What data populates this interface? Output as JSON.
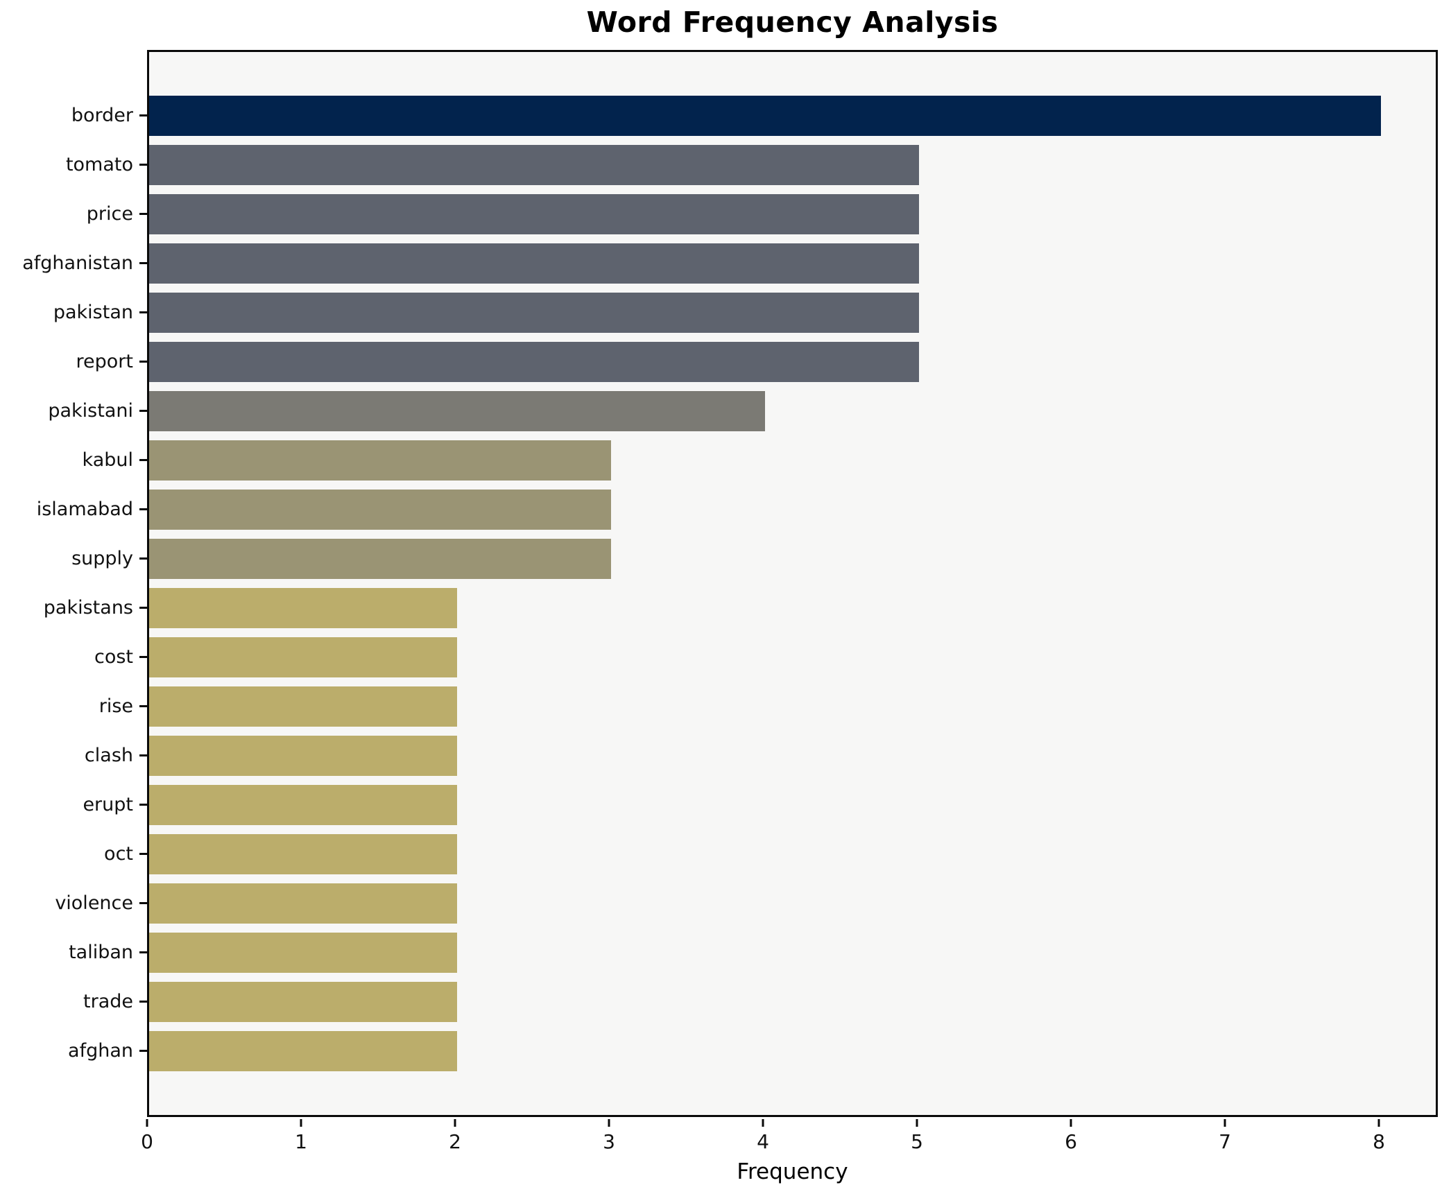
{
  "chart_data": {
    "type": "bar",
    "orientation": "horizontal",
    "title": "Word Frequency Analysis",
    "xlabel": "Frequency",
    "ylabel": "",
    "categories": [
      "border",
      "tomato",
      "price",
      "afghanistan",
      "pakistan",
      "report",
      "pakistani",
      "kabul",
      "islamabad",
      "supply",
      "pakistans",
      "cost",
      "rise",
      "clash",
      "erupt",
      "oct",
      "violence",
      "taliban",
      "trade",
      "afghan"
    ],
    "values": [
      8,
      5,
      5,
      5,
      5,
      5,
      4,
      3,
      3,
      3,
      2,
      2,
      2,
      2,
      2,
      2,
      2,
      2,
      2,
      2
    ],
    "bar_colors": [
      "#02234d",
      "#5e636e",
      "#5e636e",
      "#5e636e",
      "#5e636e",
      "#5e636e",
      "#7b7a74",
      "#9a9474",
      "#9a9474",
      "#9a9474",
      "#bbad6b",
      "#bbad6b",
      "#bbad6b",
      "#bbad6b",
      "#bbad6b",
      "#bbad6b",
      "#bbad6b",
      "#bbad6b",
      "#bbad6b",
      "#bbad6b"
    ],
    "xticks": [
      0,
      1,
      2,
      3,
      4,
      5,
      6,
      7,
      8
    ],
    "xlim": [
      0,
      8.38
    ],
    "grid": false,
    "legend": "none",
    "plot_background": "#f7f7f6",
    "figure_background": "#ffffff"
  }
}
